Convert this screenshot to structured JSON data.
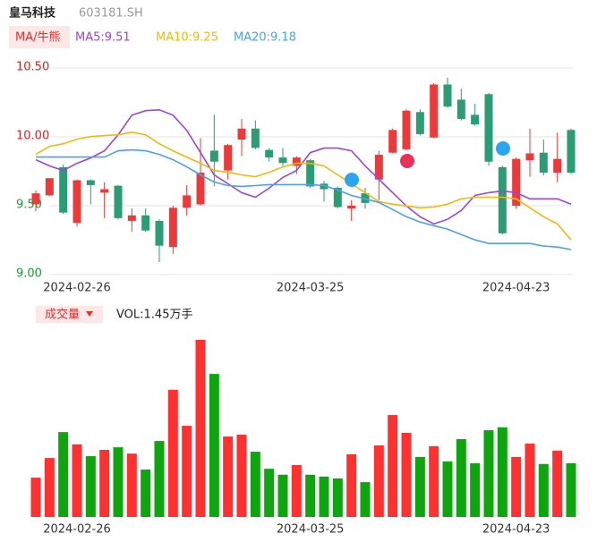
{
  "chart_data": [
    {
      "type": "candlestick",
      "title": "皇马科技",
      "subtitle": "603181.SH",
      "badge": "MA/牛熊",
      "categories": [
        null,
        null,
        null,
        "2024-02-26",
        null,
        null,
        null,
        null,
        null,
        null,
        null,
        null,
        null,
        null,
        null,
        null,
        null,
        null,
        null,
        null,
        "2024-03-25",
        null,
        null,
        null,
        null,
        null,
        null,
        null,
        null,
        null,
        null,
        null,
        null,
        null,
        null,
        "2024-04-23",
        null,
        null,
        null,
        null
      ],
      "open": [
        9.51,
        9.575,
        9.78,
        9.375,
        9.685,
        9.595,
        9.645,
        9.39,
        9.43,
        9.39,
        9.2,
        9.485,
        9.51,
        9.9,
        9.756,
        9.98,
        10.06,
        9.905,
        9.85,
        9.79,
        9.83,
        9.66,
        9.63,
        9.48,
        9.59,
        9.69,
        9.885,
        9.91,
        10.18,
        9.995,
        10.38,
        10.27,
        10.16,
        10.31,
        9.78,
        9.5,
        9.83,
        9.885,
        9.74,
        10.05
      ],
      "high": [
        9.61,
        9.7,
        9.8,
        9.69,
        9.69,
        9.67,
        9.65,
        9.48,
        9.48,
        9.4,
        9.5,
        9.65,
        9.99,
        10.16,
        9.95,
        10.13,
        10.12,
        9.92,
        9.92,
        9.86,
        9.84,
        9.68,
        9.64,
        9.54,
        9.63,
        9.9,
        10.06,
        10.2,
        10.2,
        10.39,
        10.43,
        10.35,
        10.24,
        10.32,
        9.79,
        9.85,
        10.06,
        9.98,
        10.03,
        10.06
      ],
      "low": [
        9.46,
        9.57,
        9.44,
        9.35,
        9.51,
        9.41,
        9.4,
        9.31,
        9.31,
        9.09,
        9.15,
        9.43,
        9.5,
        9.64,
        9.69,
        9.86,
        9.91,
        9.82,
        9.79,
        9.73,
        9.63,
        9.53,
        9.48,
        9.39,
        9.48,
        9.54,
        9.88,
        9.9,
        10.01,
        9.99,
        10.21,
        10.12,
        10.08,
        9.79,
        9.29,
        9.48,
        9.71,
        9.72,
        9.67,
        9.73
      ],
      "close": [
        9.59,
        9.7,
        9.45,
        9.685,
        9.65,
        9.62,
        9.41,
        9.43,
        9.32,
        9.21,
        9.485,
        9.575,
        9.74,
        9.82,
        9.94,
        10.06,
        9.92,
        9.85,
        9.81,
        9.85,
        9.64,
        9.62,
        9.49,
        9.5,
        9.52,
        9.87,
        10.05,
        10.19,
        10.02,
        10.38,
        10.22,
        10.13,
        10.09,
        9.82,
        9.3,
        9.84,
        9.88,
        9.74,
        9.84,
        9.74
      ],
      "up_color": "#ec3a3a",
      "down_color": "#2a9d74",
      "series": [
        {
          "name": "MA5",
          "label": "MA5:9.51",
          "color": "#9b45e0",
          "values": [
            9.834,
            9.789,
            9.756,
            9.808,
            9.847,
            9.899,
            10.015,
            10.157,
            10.19,
            10.196,
            10.157,
            10.047,
            9.886,
            9.724,
            9.659,
            9.595,
            9.562,
            9.627,
            9.705,
            9.756,
            9.886,
            9.918,
            9.918,
            9.899,
            9.789,
            9.692,
            9.595,
            9.498,
            9.42,
            9.368,
            9.401,
            9.465,
            9.575,
            9.595,
            9.608,
            9.595,
            9.55,
            9.55,
            9.55,
            9.511
          ]
        },
        {
          "name": "MA10",
          "label": "MA10:9.25",
          "color": "#f2b90c",
          "values": [
            9.873,
            9.931,
            9.95,
            9.983,
            10.002,
            10.009,
            10.015,
            10.034,
            10.015,
            9.95,
            9.899,
            9.853,
            9.808,
            9.756,
            9.743,
            9.724,
            9.711,
            9.743,
            9.782,
            9.808,
            9.808,
            9.789,
            9.724,
            9.659,
            9.595,
            9.53,
            9.511,
            9.498,
            9.485,
            9.491,
            9.511,
            9.55,
            9.562,
            9.562,
            9.562,
            9.55,
            9.485,
            9.42,
            9.368,
            9.252
          ]
        },
        {
          "name": "MA20",
          "label": "MA20:9.18",
          "color": "#4d9ff0",
          "values": [
            9.853,
            9.853,
            9.853,
            9.853,
            9.853,
            9.853,
            9.899,
            9.905,
            9.899,
            9.873,
            9.834,
            9.782,
            9.724,
            9.672,
            9.646,
            9.64,
            9.646,
            9.653,
            9.653,
            9.653,
            9.653,
            9.646,
            9.614,
            9.575,
            9.55,
            9.524,
            9.472,
            9.42,
            9.381,
            9.355,
            9.33,
            9.291,
            9.252,
            9.226,
            9.226,
            9.226,
            9.226,
            9.207,
            9.2,
            9.181
          ]
        }
      ],
      "ylim": [
        9.0,
        10.5
      ],
      "yticks": [
        {
          "value": 9.0,
          "label": "9.00"
        },
        {
          "value": 9.5,
          "label": "9.50"
        },
        {
          "value": 10.0,
          "label": "10.00"
        },
        {
          "value": 10.5,
          "label": "10.50"
        }
      ],
      "ytick_colors": [
        "#1a9a3a",
        "#1a9a3a",
        "#e02020",
        "#e02020"
      ],
      "grid": true
    },
    {
      "type": "bar",
      "badge": "成交量",
      "label": "VOL:1.45万手",
      "categories": [
        null,
        null,
        null,
        "2024-02-26",
        null,
        null,
        null,
        null,
        null,
        null,
        null,
        null,
        null,
        null,
        null,
        null,
        null,
        null,
        null,
        null,
        "2024-03-25",
        null,
        null,
        null,
        null,
        null,
        null,
        null,
        null,
        null,
        null,
        null,
        null,
        null,
        null,
        "2024-04-23",
        null,
        null,
        null,
        null
      ],
      "values": [
        1.06,
        1.59,
        2.29,
        1.96,
        1.64,
        1.81,
        1.88,
        1.71,
        1.28,
        2.05,
        3.43,
        2.46,
        4.78,
        3.86,
        2.17,
        2.22,
        1.76,
        1.3,
        1.14,
        1.4,
        1.14,
        1.09,
        1.04,
        1.69,
        0.94,
        1.93,
        2.75,
        2.27,
        1.62,
        1.91,
        1.5,
        2.1,
        1.45,
        2.34,
        2.42,
        1.62,
        1.98,
        1.43,
        1.79,
        1.45
      ],
      "up_color": "#ff3030",
      "down_color": "#0ea60e",
      "ylim": [
        0,
        4.9
      ]
    }
  ]
}
